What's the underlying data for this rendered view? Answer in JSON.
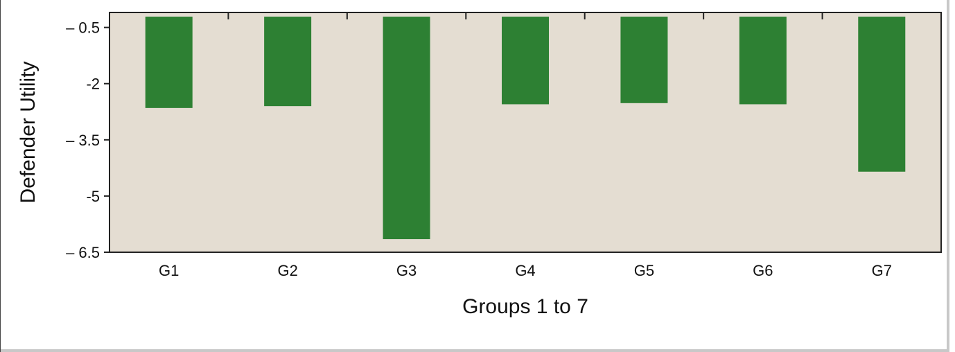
{
  "chart_data": {
    "type": "bar",
    "title": "",
    "xlabel": "Groups 1 to 7",
    "ylabel": "Defender Utility",
    "categories": [
      "G1",
      "G2",
      "G3",
      "G4",
      "G5",
      "G6",
      "G7"
    ],
    "values": [
      -2.65,
      -2.6,
      -6.15,
      -2.55,
      -2.52,
      -2.55,
      -4.35
    ],
    "yticks": [
      -0.5,
      -2,
      -3.5,
      -5,
      -6.5
    ],
    "ytick_labels": [
      "– 0.5",
      "-2",
      "– 3.5",
      "-5",
      "– 6.5"
    ],
    "ylim": [
      -6.5,
      -0.1
    ],
    "bar_color": "#2d8033",
    "plot_background": "#e4ddd2",
    "grid": false
  }
}
